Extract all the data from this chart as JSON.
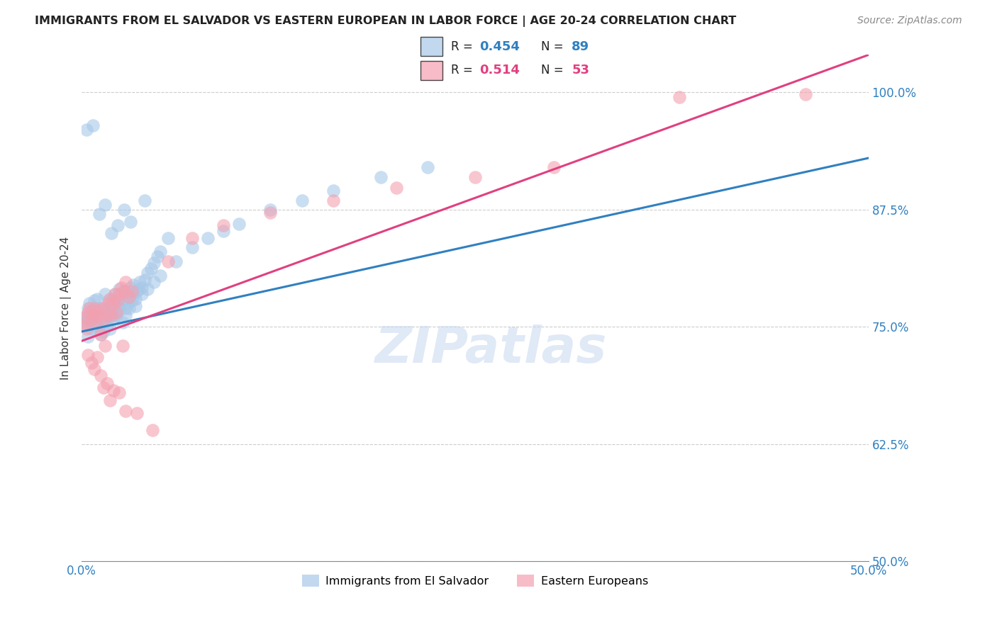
{
  "title": "IMMIGRANTS FROM EL SALVADOR VS EASTERN EUROPEAN IN LABOR FORCE | AGE 20-24 CORRELATION CHART",
  "source": "Source: ZipAtlas.com",
  "ylabel": "In Labor Force | Age 20-24",
  "xlim": [
    0.0,
    0.5
  ],
  "ylim": [
    0.5,
    1.04
  ],
  "xticks": [
    0.0,
    0.1,
    0.2,
    0.3,
    0.4,
    0.5
  ],
  "xticklabels": [
    "0.0%",
    "",
    "",
    "",
    "",
    "50.0%"
  ],
  "yticks_right": [
    0.5,
    0.625,
    0.75,
    0.875,
    1.0
  ],
  "yticklabels_right": [
    "50.0%",
    "62.5%",
    "75.0%",
    "87.5%",
    "100.0%"
  ],
  "blue_color": "#a8c8e8",
  "pink_color": "#f4a0b0",
  "blue_line_color": "#3080c0",
  "pink_line_color": "#e04080",
  "legend_blue_label": "Immigrants from El Salvador",
  "legend_pink_label": "Eastern Europeans",
  "R_blue": 0.454,
  "N_blue": 89,
  "R_pink": 0.514,
  "N_pink": 53,
  "watermark": "ZIPatlas",
  "blue_line_x0": 0.0,
  "blue_line_y0": 0.745,
  "blue_line_x1": 0.5,
  "blue_line_y1": 0.93,
  "pink_line_x0": 0.0,
  "pink_line_y0": 0.735,
  "pink_line_x1": 0.5,
  "pink_line_y1": 1.04,
  "blue_scatter_x": [
    0.001,
    0.002,
    0.003,
    0.004,
    0.005,
    0.005,
    0.006,
    0.007,
    0.008,
    0.008,
    0.009,
    0.01,
    0.01,
    0.011,
    0.012,
    0.013,
    0.014,
    0.015,
    0.015,
    0.016,
    0.017,
    0.018,
    0.019,
    0.02,
    0.02,
    0.021,
    0.022,
    0.023,
    0.024,
    0.025,
    0.026,
    0.027,
    0.028,
    0.029,
    0.03,
    0.031,
    0.032,
    0.033,
    0.034,
    0.035,
    0.036,
    0.037,
    0.038,
    0.04,
    0.042,
    0.044,
    0.046,
    0.048,
    0.05,
    0.055,
    0.004,
    0.006,
    0.008,
    0.01,
    0.012,
    0.014,
    0.016,
    0.018,
    0.02,
    0.022,
    0.024,
    0.026,
    0.028,
    0.03,
    0.032,
    0.034,
    0.038,
    0.042,
    0.046,
    0.05,
    0.06,
    0.07,
    0.08,
    0.09,
    0.1,
    0.12,
    0.14,
    0.16,
    0.19,
    0.22,
    0.003,
    0.007,
    0.011,
    0.015,
    0.019,
    0.023,
    0.027,
    0.031,
    0.04
  ],
  "blue_scatter_y": [
    0.755,
    0.758,
    0.762,
    0.77,
    0.76,
    0.775,
    0.768,
    0.755,
    0.762,
    0.778,
    0.75,
    0.765,
    0.78,
    0.77,
    0.758,
    0.762,
    0.755,
    0.77,
    0.785,
    0.76,
    0.778,
    0.772,
    0.768,
    0.78,
    0.762,
    0.785,
    0.778,
    0.772,
    0.79,
    0.775,
    0.78,
    0.788,
    0.77,
    0.775,
    0.782,
    0.792,
    0.785,
    0.795,
    0.78,
    0.788,
    0.79,
    0.798,
    0.792,
    0.8,
    0.808,
    0.812,
    0.818,
    0.825,
    0.83,
    0.845,
    0.74,
    0.748,
    0.752,
    0.758,
    0.742,
    0.745,
    0.752,
    0.748,
    0.758,
    0.762,
    0.768,
    0.755,
    0.762,
    0.77,
    0.778,
    0.772,
    0.785,
    0.79,
    0.798,
    0.805,
    0.82,
    0.835,
    0.845,
    0.852,
    0.86,
    0.875,
    0.885,
    0.895,
    0.91,
    0.92,
    0.96,
    0.965,
    0.87,
    0.88,
    0.85,
    0.858,
    0.875,
    0.862,
    0.885
  ],
  "pink_scatter_x": [
    0.001,
    0.002,
    0.003,
    0.004,
    0.005,
    0.006,
    0.007,
    0.008,
    0.009,
    0.01,
    0.011,
    0.012,
    0.013,
    0.014,
    0.015,
    0.016,
    0.017,
    0.018,
    0.019,
    0.02,
    0.021,
    0.022,
    0.023,
    0.024,
    0.025,
    0.026,
    0.027,
    0.028,
    0.03,
    0.032,
    0.004,
    0.006,
    0.008,
    0.01,
    0.012,
    0.014,
    0.016,
    0.018,
    0.02,
    0.024,
    0.028,
    0.035,
    0.045,
    0.055,
    0.07,
    0.09,
    0.12,
    0.16,
    0.2,
    0.25,
    0.3,
    0.38,
    0.46
  ],
  "pink_scatter_y": [
    0.752,
    0.76,
    0.748,
    0.765,
    0.77,
    0.758,
    0.762,
    0.77,
    0.755,
    0.762,
    0.768,
    0.742,
    0.77,
    0.758,
    0.73,
    0.762,
    0.775,
    0.78,
    0.762,
    0.775,
    0.785,
    0.765,
    0.778,
    0.785,
    0.792,
    0.73,
    0.788,
    0.798,
    0.782,
    0.788,
    0.72,
    0.712,
    0.705,
    0.718,
    0.698,
    0.685,
    0.69,
    0.672,
    0.682,
    0.68,
    0.66,
    0.658,
    0.64,
    0.82,
    0.845,
    0.858,
    0.872,
    0.885,
    0.898,
    0.91,
    0.92,
    0.995,
    0.998
  ]
}
